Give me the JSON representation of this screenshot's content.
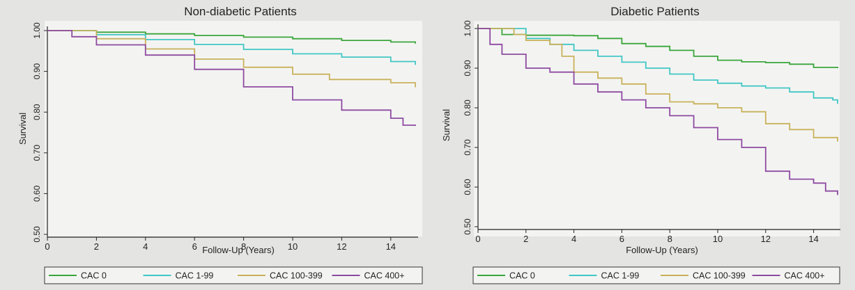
{
  "colors": {
    "background": "#e4e5e3",
    "plot_bg": "#f3f4f2",
    "axis": "#222222",
    "CAC 0": "#3aa53a",
    "CAC 1-99": "#41c6c4",
    "CAC 100-399": "#c9b15a",
    "CAC 400+": "#8e4aa0"
  },
  "chart_data": [
    {
      "type": "line",
      "title": "Non-diabetic Patients",
      "xlabel": "Follow-Up (Years)",
      "ylabel": "Survival",
      "xlim": [
        0,
        15
      ],
      "ylim": [
        0.5,
        1.0
      ],
      "xticks": [
        0,
        2,
        4,
        6,
        8,
        10,
        12,
        14
      ],
      "xtick_labels": [
        "0",
        "2",
        "4",
        "6",
        "8",
        "10",
        "12",
        "14"
      ],
      "yticks": [
        0.5,
        0.6,
        0.7,
        0.8,
        0.9,
        1.0
      ],
      "ytick_labels": [
        "0.50",
        "0.60",
        "0.70",
        "0.80",
        "0.90",
        "1.00"
      ],
      "grid": false,
      "legend_position": "bottom",
      "series": [
        {
          "name": "CAC 0",
          "points": [
            [
              0,
              1.0
            ],
            [
              2,
              0.996
            ],
            [
              4,
              0.992
            ],
            [
              6,
              0.988
            ],
            [
              8,
              0.984
            ],
            [
              10,
              0.98
            ],
            [
              12,
              0.976
            ],
            [
              14,
              0.972
            ],
            [
              15,
              0.968
            ]
          ]
        },
        {
          "name": "CAC 1-99",
          "points": [
            [
              0,
              1.0
            ],
            [
              2,
              0.99
            ],
            [
              4,
              0.978
            ],
            [
              6,
              0.966
            ],
            [
              8,
              0.954
            ],
            [
              10,
              0.943
            ],
            [
              12,
              0.935
            ],
            [
              14,
              0.924
            ],
            [
              15,
              0.916
            ]
          ]
        },
        {
          "name": "CAC 100-399",
          "points": [
            [
              0,
              1.0
            ],
            [
              2,
              0.98
            ],
            [
              4,
              0.955
            ],
            [
              6,
              0.93
            ],
            [
              8,
              0.91
            ],
            [
              10,
              0.893
            ],
            [
              11.5,
              0.88
            ],
            [
              13,
              0.88
            ],
            [
              14,
              0.872
            ],
            [
              15,
              0.861
            ]
          ]
        },
        {
          "name": "CAC 400+",
          "points": [
            [
              0,
              1.0
            ],
            [
              1,
              0.985
            ],
            [
              2,
              0.965
            ],
            [
              4,
              0.94
            ],
            [
              6,
              0.905
            ],
            [
              8,
              0.862
            ],
            [
              10,
              0.83
            ],
            [
              12,
              0.805
            ],
            [
              14,
              0.785
            ],
            [
              14.5,
              0.768
            ],
            [
              15,
              0.766
            ]
          ]
        }
      ]
    },
    {
      "type": "line",
      "title": "Diabetic Patients",
      "xlabel": "Follow-Up (Years)",
      "ylabel": "Survival",
      "xlim": [
        0,
        15
      ],
      "ylim": [
        0.5,
        1.0
      ],
      "xticks": [
        0,
        2,
        4,
        6,
        8,
        10,
        12,
        14
      ],
      "xtick_labels": [
        "0",
        "2",
        "4",
        "6",
        "8",
        "10",
        "12",
        "14"
      ],
      "yticks": [
        0.5,
        0.6,
        0.7,
        0.8,
        0.9,
        1.0
      ],
      "ytick_labels": [
        "0.50",
        "0.60",
        "0.70",
        "0.80",
        "0.90",
        "1.00"
      ],
      "grid": false,
      "legend_position": "bottom",
      "series": [
        {
          "name": "CAC 0",
          "points": [
            [
              0,
              1.0
            ],
            [
              1,
              0.985
            ],
            [
              2,
              0.983
            ],
            [
              4,
              0.982
            ],
            [
              5,
              0.975
            ],
            [
              6,
              0.962
            ],
            [
              7,
              0.955
            ],
            [
              8,
              0.945
            ],
            [
              9,
              0.93
            ],
            [
              10,
              0.92
            ],
            [
              11,
              0.916
            ],
            [
              12,
              0.914
            ],
            [
              13,
              0.91
            ],
            [
              14,
              0.902
            ],
            [
              15,
              0.9
            ]
          ]
        },
        {
          "name": "CAC 1-99",
          "points": [
            [
              0,
              1.0
            ],
            [
              1.5,
              1.0
            ],
            [
              2,
              0.975
            ],
            [
              3,
              0.96
            ],
            [
              4,
              0.945
            ],
            [
              5,
              0.93
            ],
            [
              6,
              0.915
            ],
            [
              7,
              0.9
            ],
            [
              8,
              0.885
            ],
            [
              9,
              0.87
            ],
            [
              10,
              0.862
            ],
            [
              11,
              0.855
            ],
            [
              12,
              0.85
            ],
            [
              13,
              0.84
            ],
            [
              14,
              0.825
            ],
            [
              14.8,
              0.82
            ],
            [
              15,
              0.81
            ]
          ]
        },
        {
          "name": "CAC 100-399",
          "points": [
            [
              0,
              1.0
            ],
            [
              1.5,
              0.985
            ],
            [
              2,
              0.97
            ],
            [
              3,
              0.96
            ],
            [
              3.5,
              0.93
            ],
            [
              4,
              0.89
            ],
            [
              5,
              0.875
            ],
            [
              6,
              0.86
            ],
            [
              7,
              0.835
            ],
            [
              8,
              0.815
            ],
            [
              9,
              0.81
            ],
            [
              10,
              0.8
            ],
            [
              11,
              0.79
            ],
            [
              12,
              0.76
            ],
            [
              13,
              0.745
            ],
            [
              14,
              0.725
            ],
            [
              15,
              0.715
            ]
          ]
        },
        {
          "name": "CAC 400+",
          "points": [
            [
              0,
              1.0
            ],
            [
              0.5,
              0.96
            ],
            [
              1,
              0.935
            ],
            [
              2,
              0.9
            ],
            [
              3,
              0.89
            ],
            [
              4,
              0.86
            ],
            [
              5,
              0.84
            ],
            [
              6,
              0.82
            ],
            [
              7,
              0.8
            ],
            [
              8,
              0.78
            ],
            [
              9,
              0.75
            ],
            [
              10,
              0.72
            ],
            [
              11,
              0.7
            ],
            [
              12,
              0.64
            ],
            [
              13,
              0.62
            ],
            [
              14,
              0.61
            ],
            [
              14.5,
              0.59
            ],
            [
              15,
              0.58
            ]
          ]
        }
      ]
    }
  ]
}
